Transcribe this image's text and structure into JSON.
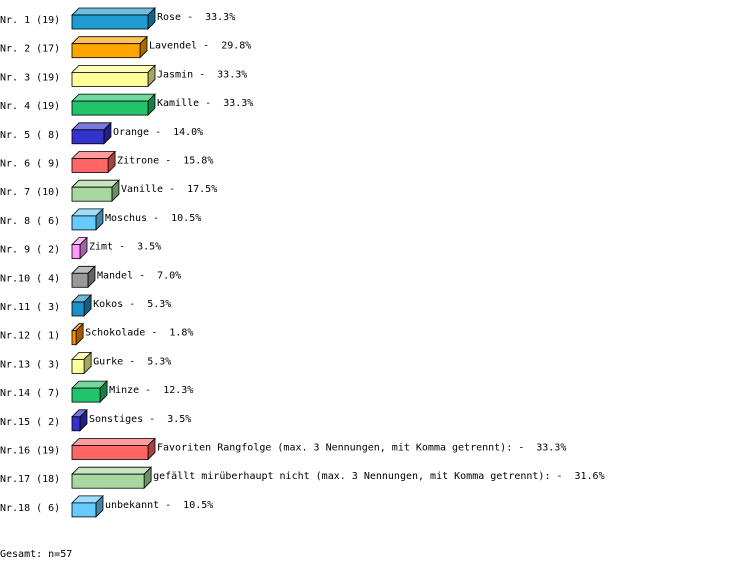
{
  "chart_data": {
    "type": "bar3d",
    "row_labels": [
      "Nr. 1 (19)",
      "Nr. 2 (17)",
      "Nr. 3 (19)",
      "Nr. 4 (19)",
      "Nr. 5 ( 8)",
      "Nr. 6 ( 9)",
      "Nr. 7 (10)",
      "Nr. 8 ( 6)",
      "Nr. 9 ( 2)",
      "Nr.10 ( 4)",
      "Nr.11 ( 3)",
      "Nr.12 ( 1)",
      "Nr.13 ( 3)",
      "Nr.14 ( 7)",
      "Nr.15 ( 2)",
      "Nr.16 (19)",
      "Nr.17 (18)",
      "Nr.18 ( 6)"
    ],
    "categories": [
      "Rose",
      "Lavendel",
      "Jasmin",
      "Kamille",
      "Orange",
      "Zitrone",
      "Vanille",
      "Moschus",
      "Zimt",
      "Mandel",
      "Kokos",
      "Schokolade",
      "Gurke",
      "Minze",
      "Sonstiges",
      "Favoriten Rangfolge (max. 3 Nennungen, mit Komma getrennt):",
      "gefällt mirüberhaupt nicht (max. 3 Nennungen, mit Komma getrennt):",
      "unbekannt"
    ],
    "separator": "-",
    "values": [
      33.3,
      29.8,
      33.3,
      33.3,
      14.0,
      15.8,
      17.5,
      10.5,
      3.5,
      7.0,
      5.3,
      1.8,
      5.3,
      12.3,
      3.5,
      33.3,
      31.6,
      10.5
    ],
    "value_labels": [
      "33.3%",
      "29.8%",
      "33.3%",
      "33.3%",
      "14.0%",
      "15.8%",
      "17.5%",
      "10.5%",
      "3.5%",
      "7.0%",
      "5.3%",
      "1.8%",
      "5.3%",
      "12.3%",
      "3.5%",
      "33.3%",
      "31.6%",
      "10.5%"
    ],
    "colors": [
      "#1e9bd0",
      "#ffa500",
      "#ffff99",
      "#22c46a",
      "#3333cc",
      "#ff6666",
      "#a8d8a0",
      "#66ccff",
      "#ff99ff",
      "#999999",
      "#1e90c8",
      "#ff8800",
      "#ffff99",
      "#22c46a",
      "#3333cc",
      "#ff6666",
      "#a8d8a0",
      "#66ccff"
    ],
    "footer": "Gesamt: n=57"
  }
}
